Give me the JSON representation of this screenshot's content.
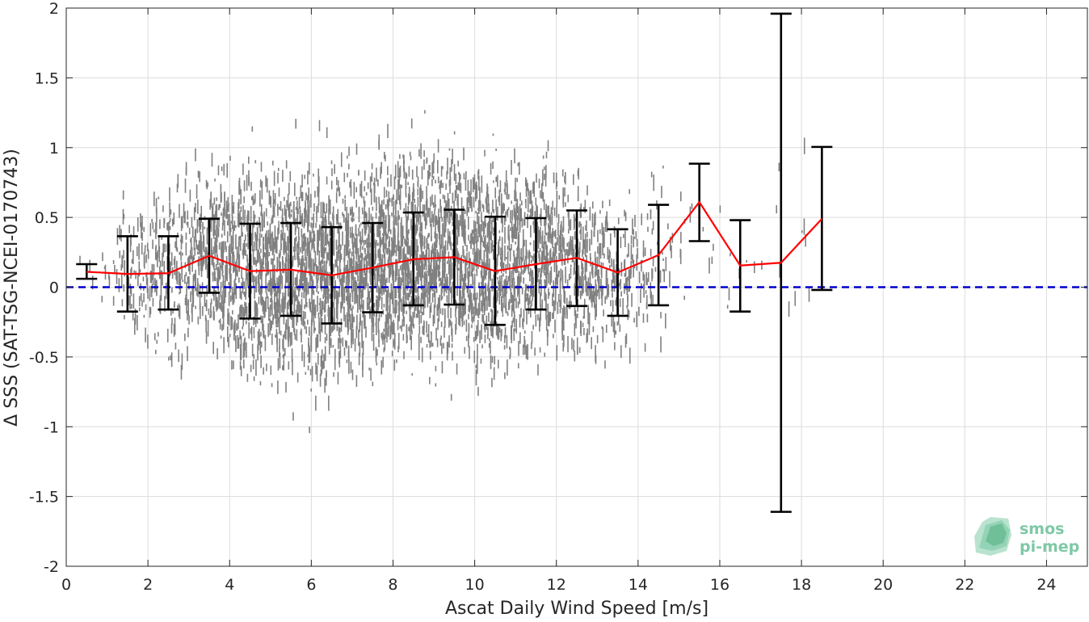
{
  "chart_data": {
    "type": "scatter",
    "xlabel": "Ascat Daily Wind Speed [m/s]",
    "ylabel": "Δ SSS (SAT-TSG-NCEI-0170743)",
    "xlim": [
      0,
      25
    ],
    "ylim": [
      -2,
      2
    ],
    "xticks": [
      0,
      2,
      4,
      6,
      8,
      10,
      12,
      14,
      16,
      18,
      20,
      22,
      24
    ],
    "yticks": [
      -2,
      -1.5,
      -1,
      -0.5,
      0,
      0.5,
      1,
      1.5,
      2
    ],
    "xtick_labels": [
      "0",
      "2",
      "4",
      "6",
      "8",
      "10",
      "12",
      "14",
      "16",
      "18",
      "20",
      "22",
      "24"
    ],
    "ytick_labels": [
      "-2",
      "-1.5",
      "-1",
      "-0.5",
      "0",
      "0.5",
      "1",
      "1.5",
      "2"
    ],
    "grid": true,
    "scatter_color": "#808080",
    "mean_line_color": "#ff0000",
    "errorbar_color": "#000000",
    "zero_line_color": "#0000cc",
    "zero_line_y": 0,
    "binned": {
      "x": [
        0.5,
        1.5,
        2.5,
        3.5,
        4.5,
        5.5,
        6.5,
        7.5,
        8.5,
        9.5,
        10.5,
        11.5,
        12.5,
        13.5,
        14.5,
        15.5,
        16.5,
        17.5,
        18.5
      ],
      "mean": [
        0.11,
        0.095,
        0.1,
        0.225,
        0.115,
        0.125,
        0.085,
        0.14,
        0.2,
        0.215,
        0.115,
        0.165,
        0.21,
        0.105,
        0.23,
        0.61,
        0.155,
        0.175,
        0.49
      ],
      "lower": [
        0.06,
        -0.175,
        -0.16,
        -0.04,
        -0.225,
        -0.205,
        -0.26,
        -0.18,
        -0.13,
        -0.125,
        -0.27,
        -0.16,
        -0.135,
        -0.205,
        -0.13,
        0.33,
        -0.175,
        -1.61,
        -0.02
      ],
      "upper": [
        0.165,
        0.365,
        0.365,
        0.49,
        0.455,
        0.46,
        0.43,
        0.46,
        0.535,
        0.555,
        0.505,
        0.495,
        0.55,
        0.415,
        0.59,
        0.885,
        0.48,
        1.96,
        1.005
      ]
    },
    "scatter_density": {
      "x": [
        0.5,
        1,
        1.5,
        2,
        2.5,
        3,
        3.5,
        4,
        4.5,
        5,
        5.5,
        6,
        6.5,
        7,
        7.5,
        8,
        8.5,
        9,
        9.5,
        10,
        10.5,
        11,
        11.5,
        12,
        12.5,
        13,
        13.5,
        14,
        14.5,
        15,
        15.5,
        16,
        16.5,
        17,
        17.5,
        18
      ],
      "center": [
        0.1,
        0.1,
        0.12,
        0.12,
        0.15,
        0.18,
        0.2,
        0.15,
        0.12,
        0.13,
        0.12,
        0.1,
        0.1,
        0.14,
        0.16,
        0.2,
        0.22,
        0.22,
        0.2,
        0.15,
        0.14,
        0.17,
        0.2,
        0.2,
        0.18,
        0.12,
        0.1,
        0.12,
        0.18,
        0.25,
        0.5,
        0.3,
        0.2,
        0.15,
        0.25,
        0.4
      ],
      "spread": [
        0.05,
        0.12,
        0.22,
        0.28,
        0.3,
        0.32,
        0.3,
        0.32,
        0.35,
        0.35,
        0.35,
        0.36,
        0.36,
        0.34,
        0.33,
        0.35,
        0.36,
        0.36,
        0.35,
        0.36,
        0.34,
        0.33,
        0.32,
        0.3,
        0.3,
        0.28,
        0.26,
        0.26,
        0.25,
        0.2,
        0.2,
        0.2,
        0.15,
        0.1,
        0.3,
        0.3
      ],
      "count": [
        3,
        10,
        40,
        70,
        80,
        110,
        140,
        170,
        190,
        210,
        220,
        230,
        240,
        240,
        250,
        250,
        250,
        240,
        230,
        220,
        210,
        190,
        170,
        150,
        130,
        110,
        80,
        55,
        30,
        10,
        4,
        5,
        4,
        2,
        4,
        6
      ]
    }
  },
  "logo": {
    "line1": "smos",
    "line2": "pi-mep"
  }
}
